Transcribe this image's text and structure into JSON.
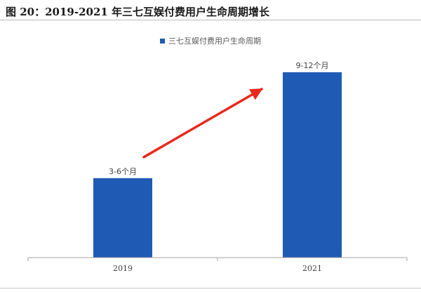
{
  "figure": {
    "title": "图 20：2019-2021 年三七互娱付费用户生命周期增长"
  },
  "chart_data": {
    "type": "bar",
    "title": "",
    "xlabel": "",
    "ylabel": "",
    "categories": [
      "2019",
      "2021"
    ],
    "series": [
      {
        "name": "三七互娱付费用户生命周期",
        "color": "#1f5bb4",
        "values": [
          4.5,
          10.5
        ],
        "data_labels": [
          "3-6个月",
          "9-12个月"
        ]
      }
    ],
    "value_unit": "月（区间中点）",
    "ylim": [
      0,
      13
    ],
    "grid": false,
    "y_axis_visible": false,
    "legend_position": "top-center",
    "annotation": {
      "type": "arrow",
      "color": "#e8291c",
      "from_category": "2019",
      "to_category": "2021",
      "meaning": "increase"
    }
  }
}
